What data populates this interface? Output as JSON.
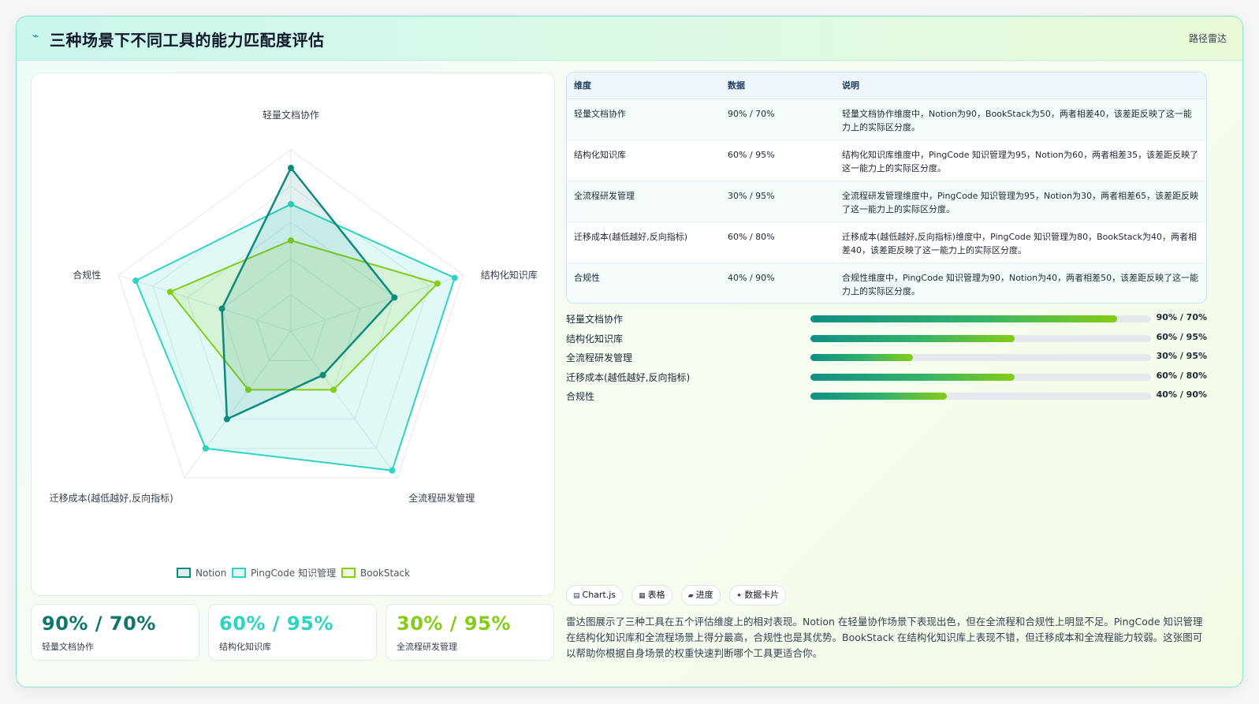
{
  "header": {
    "title": "三种场景下不同工具的能力匹配度评估",
    "tag": "路径雷达"
  },
  "chart_data": {
    "type": "radar",
    "axes": [
      "轻量文档协作",
      "结构化知识库",
      "全流程研发管理",
      "迁移成本(越低越好,反向指标)",
      "合规性"
    ],
    "series": [
      {
        "name": "Notion",
        "values": [
          90,
          60,
          30,
          60,
          40
        ],
        "color": "#0d8a7e"
      },
      {
        "name": "PingCode 知识管理",
        "values": [
          70,
          95,
          95,
          80,
          90
        ],
        "color": "#2dd4bf"
      },
      {
        "name": "BookStack",
        "values": [
          50,
          85,
          40,
          40,
          70
        ],
        "color": "#84cc16"
      }
    ],
    "range": [
      0,
      100
    ],
    "grid_levels": 5,
    "legend_position": "bottom"
  },
  "kpis": [
    {
      "value": "90% / 70%",
      "label": "轻量文档协作",
      "color": "#0f766e"
    },
    {
      "value": "60% / 95%",
      "label": "结构化知识库",
      "color": "#2dd4bf"
    },
    {
      "value": "30% / 95%",
      "label": "全流程研发管理",
      "color": "#84cc16"
    }
  ],
  "table": {
    "headers": [
      "维度",
      "数据",
      "说明"
    ],
    "rows": [
      {
        "dim": "轻量文档协作",
        "data": "90% / 70%",
        "desc": "轻量文档协作维度中，Notion为90，BookStack为50，两者相差40，该差距反映了这一能力上的实际区分度。"
      },
      {
        "dim": "结构化知识库",
        "data": "60% / 95%",
        "desc": "结构化知识库维度中，PingCode 知识管理为95，Notion为60，两者相差35，该差距反映了这一能力上的实际区分度。"
      },
      {
        "dim": "全流程研发管理",
        "data": "30% / 95%",
        "desc": "全流程研发管理维度中，PingCode 知识管理为95，Notion为30，两者相差65，该差距反映了这一能力上的实际区分度。"
      },
      {
        "dim": "迁移成本(越低越好,反向指标)",
        "data": "60% / 80%",
        "desc": "迁移成本(越低越好,反向指标)维度中，PingCode 知识管理为80，BookStack为40，两者相差40，该差距反映了这一能力上的实际区分度。"
      },
      {
        "dim": "合规性",
        "data": "40% / 90%",
        "desc": "合规性维度中，PingCode 知识管理为90，Notion为40，两者相差50，该差距反映了这一能力上的实际区分度。"
      }
    ]
  },
  "progress": [
    {
      "label": "轻量文档协作",
      "value": "90% / 70%",
      "fill": 0.9
    },
    {
      "label": "结构化知识库",
      "value": "60% / 95%",
      "fill": 0.6
    },
    {
      "label": "全流程研发管理",
      "value": "30% / 95%",
      "fill": 0.3
    },
    {
      "label": "迁移成本(越低越好,反向指标)",
      "value": "60% / 80%",
      "fill": 0.6
    },
    {
      "label": "合规性",
      "value": "40% / 90%",
      "fill": 0.4
    }
  ],
  "pills": [
    {
      "label": "Chart.js",
      "icon": "chart-icon"
    },
    {
      "label": "表格",
      "icon": "table-icon"
    },
    {
      "label": "进度",
      "icon": "progress-icon"
    },
    {
      "label": "数据卡片",
      "icon": "card-icon"
    }
  ],
  "description": "雷达图展示了三种工具在五个评估维度上的相对表现。Notion 在轻量协作场景下表现出色，但在全流程和合规性上明显不足。PingCode 知识管理在结构化知识库和全流程场景上得分最高，合规性也是其优势。BookStack 在结构化知识库上表现不错，但迁移成本和全流程能力较弱。这张图可以帮助你根据自身场景的权重快速判断哪个工具更适合你。"
}
